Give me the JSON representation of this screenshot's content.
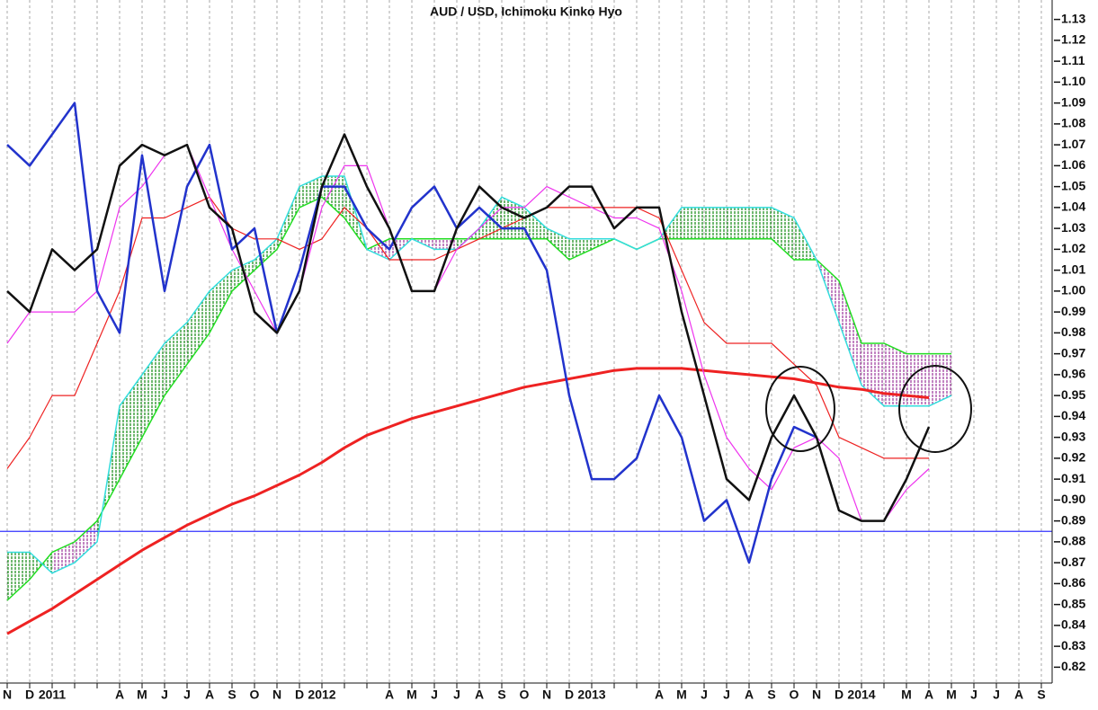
{
  "chart_data": {
    "type": "line",
    "title": "AUD / USD, Ichimoku Kinko Hyo",
    "categories": [
      "N",
      "D",
      "2011",
      null,
      null,
      "A",
      "M",
      "J",
      "J",
      "A",
      "S",
      "O",
      "N",
      "D",
      "2012",
      null,
      null,
      "A",
      "M",
      "J",
      "J",
      "A",
      "S",
      "O",
      "N",
      "D",
      "2013",
      null,
      null,
      "A",
      "M",
      "J",
      "J",
      "A",
      "S",
      "O",
      "N",
      "D",
      "2014",
      null,
      "M",
      "A",
      "M",
      "J",
      "J",
      "A",
      "S"
    ],
    "ylim": [
      0.815,
      1.135
    ],
    "yticks": [
      0.82,
      0.83,
      0.84,
      0.85,
      0.86,
      0.87,
      0.88,
      0.89,
      {
        "value": 0.9,
        "label": "0.90"
      },
      0.91,
      0.92,
      0.93,
      0.94,
      0.95,
      0.96,
      0.97,
      0.98,
      0.99,
      {
        "value": 1,
        "label": "1.00"
      },
      1.01,
      1.02,
      1.03,
      1.04,
      1.05,
      1.06,
      1.07,
      1.08,
      1.09,
      {
        "value": 1.1,
        "label": "1.10"
      },
      1.11,
      1.12,
      1.13
    ],
    "grid": true,
    "cloud": {
      "a": [
        0.852,
        0.862,
        0.875,
        0.88,
        0.89,
        0.91,
        0.93,
        0.95,
        0.965,
        0.98,
        1.0,
        1.01,
        1.02,
        1.04,
        1.045,
        1.035,
        1.02,
        1.025,
        1.025,
        1.025,
        1.025,
        1.025,
        1.025,
        1.025,
        1.025,
        1.015,
        1.02,
        1.025,
        1.02,
        1.025,
        1.025,
        1.025,
        1.025,
        1.025,
        1.025,
        1.015,
        1.015,
        1.005,
        0.975,
        0.975,
        0.97,
        0.97,
        0.97,
        null,
        null,
        null,
        null
      ],
      "b": [
        0.875,
        0.875,
        0.865,
        0.87,
        0.88,
        0.945,
        0.96,
        0.975,
        0.985,
        1.0,
        1.01,
        1.015,
        1.025,
        1.05,
        1.055,
        1.055,
        1.02,
        1.015,
        1.025,
        1.02,
        1.02,
        1.03,
        1.045,
        1.04,
        1.03,
        1.025,
        1.025,
        1.025,
        1.02,
        1.025,
        1.04,
        1.04,
        1.04,
        1.04,
        1.04,
        1.035,
        1.015,
        0.985,
        0.955,
        0.945,
        0.945,
        0.945,
        0.95,
        null,
        null,
        null,
        null
      ],
      "a_color": "#22dd22",
      "b_color": "#33dddd",
      "up_fill": "#118811",
      "down_fill": "#993399"
    },
    "hlines": [
      {
        "value": 0.885,
        "color": "#3333ff"
      }
    ],
    "series": [
      {
        "color": "#ee2222",
        "width": 3,
        "values": [
          0.836,
          0.842,
          0.848,
          0.855,
          0.862,
          0.869,
          0.876,
          0.882,
          0.888,
          0.893,
          0.898,
          0.902,
          0.907,
          0.912,
          0.918,
          0.925,
          0.931,
          0.935,
          0.939,
          0.942,
          0.945,
          0.948,
          0.951,
          0.954,
          0.956,
          0.958,
          0.96,
          0.962,
          0.963,
          0.963,
          0.963,
          0.962,
          0.961,
          0.96,
          0.959,
          0.958,
          0.956,
          0.954,
          0.953,
          0.951,
          0.95,
          0.949,
          null,
          null,
          null,
          null,
          null
        ]
      },
      {
        "color": "#ee2222",
        "width": 1.2,
        "values": [
          0.915,
          0.93,
          0.95,
          0.95,
          0.975,
          1.0,
          1.035,
          1.035,
          1.04,
          1.045,
          1.03,
          1.025,
          1.025,
          1.02,
          1.025,
          1.04,
          1.03,
          1.015,
          1.015,
          1.015,
          1.02,
          1.025,
          1.03,
          1.035,
          1.04,
          1.04,
          1.04,
          1.04,
          1.04,
          1.035,
          1.01,
          0.985,
          0.975,
          0.975,
          0.975,
          0.965,
          0.955,
          0.93,
          0.925,
          0.92,
          0.92,
          0.92,
          null,
          null,
          null,
          null,
          null
        ]
      },
      {
        "color": "#ee33ee",
        "width": 1.2,
        "values": [
          0.975,
          0.99,
          0.99,
          0.99,
          1.0,
          1.04,
          1.05,
          1.065,
          1.07,
          1.045,
          1.02,
          1.0,
          0.98,
          1.0,
          1.04,
          1.06,
          1.06,
          1.03,
          1.0,
          1.0,
          1.02,
          1.03,
          1.04,
          1.04,
          1.05,
          1.045,
          1.04,
          1.035,
          1.035,
          1.03,
          1.0,
          0.96,
          0.93,
          0.915,
          0.905,
          0.925,
          0.93,
          0.92,
          0.89,
          0.89,
          0.905,
          0.915,
          null,
          null,
          null,
          null,
          null
        ]
      },
      {
        "color": "#2233cc",
        "width": 2.5,
        "values": [
          1.07,
          1.06,
          1.075,
          1.09,
          1.0,
          0.98,
          1.065,
          1.0,
          1.05,
          1.07,
          1.02,
          1.03,
          0.98,
          1.01,
          1.05,
          1.05,
          1.03,
          1.02,
          1.04,
          1.05,
          1.03,
          1.04,
          1.03,
          1.03,
          1.01,
          0.95,
          0.91,
          0.91,
          0.92,
          0.95,
          0.93,
          0.89,
          0.9,
          0.87,
          0.91,
          0.935,
          0.93,
          null,
          null,
          null,
          null,
          null,
          null,
          null,
          null,
          null,
          null
        ]
      },
      {
        "color": "#111111",
        "width": 2.5,
        "values": [
          1.0,
          0.99,
          1.02,
          1.01,
          1.02,
          1.06,
          1.07,
          1.065,
          1.07,
          1.04,
          1.03,
          0.99,
          0.98,
          1.0,
          1.05,
          1.075,
          1.05,
          1.03,
          1.0,
          1.0,
          1.03,
          1.05,
          1.04,
          1.035,
          1.04,
          1.05,
          1.05,
          1.03,
          1.04,
          1.04,
          0.99,
          0.95,
          0.91,
          0.9,
          0.93,
          0.95,
          0.93,
          0.895,
          0.89,
          0.89,
          0.91,
          0.935,
          null,
          null,
          null,
          null,
          null
        ]
      }
    ]
  }
}
